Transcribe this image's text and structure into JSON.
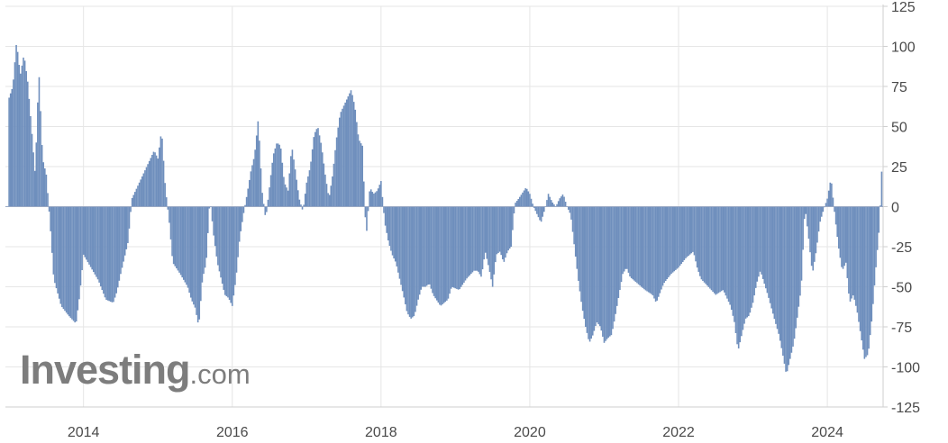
{
  "chart_data": {
    "type": "bar",
    "title": "",
    "xlabel": "",
    "ylabel": "",
    "ylim": [
      -125,
      125
    ],
    "xlim": [
      2012.95,
      2024.75
    ],
    "y_ticks": [
      125,
      100,
      75,
      50,
      25,
      0,
      -25,
      -50,
      -75,
      -100,
      -125
    ],
    "x_ticks": [
      "2014",
      "2016",
      "2018",
      "2020",
      "2022",
      "2024"
    ],
    "x_tick_values": [
      2014,
      2016,
      2018,
      2020,
      2022,
      2024
    ],
    "grid": true,
    "legend": "none",
    "bar_color": "#6f8fbd",
    "anchors": [
      [
        2013.0,
        68
      ],
      [
        2013.05,
        75
      ],
      [
        2013.1,
        103
      ],
      [
        2013.15,
        82
      ],
      [
        2013.2,
        95
      ],
      [
        2013.25,
        78
      ],
      [
        2013.3,
        50
      ],
      [
        2013.35,
        20
      ],
      [
        2013.4,
        85
      ],
      [
        2013.45,
        30
      ],
      [
        2013.5,
        20
      ],
      [
        2013.55,
        -10
      ],
      [
        2013.6,
        -45
      ],
      [
        2013.7,
        -62
      ],
      [
        2013.8,
        -68
      ],
      [
        2013.9,
        -73
      ],
      [
        2013.95,
        -55
      ],
      [
        2014.0,
        -30
      ],
      [
        2014.1,
        -38
      ],
      [
        2014.2,
        -46
      ],
      [
        2014.3,
        -58
      ],
      [
        2014.4,
        -60
      ],
      [
        2014.45,
        -53
      ],
      [
        2014.5,
        -42
      ],
      [
        2014.6,
        -22
      ],
      [
        2014.65,
        5
      ],
      [
        2014.75,
        15
      ],
      [
        2014.85,
        25
      ],
      [
        2014.95,
        35
      ],
      [
        2015.0,
        30
      ],
      [
        2015.05,
        48
      ],
      [
        2015.1,
        12
      ],
      [
        2015.15,
        -8
      ],
      [
        2015.2,
        -35
      ],
      [
        2015.3,
        -42
      ],
      [
        2015.4,
        -50
      ],
      [
        2015.45,
        -58
      ],
      [
        2015.5,
        -63
      ],
      [
        2015.55,
        -75
      ],
      [
        2015.6,
        -45
      ],
      [
        2015.65,
        -35
      ],
      [
        2015.7,
        5
      ],
      [
        2015.75,
        -18
      ],
      [
        2015.8,
        -35
      ],
      [
        2015.85,
        -45
      ],
      [
        2015.9,
        -55
      ],
      [
        2015.95,
        -57
      ],
      [
        2016.0,
        -62
      ],
      [
        2016.05,
        -45
      ],
      [
        2016.1,
        -20
      ],
      [
        2016.15,
        -5
      ],
      [
        2016.2,
        8
      ],
      [
        2016.25,
        22
      ],
      [
        2016.3,
        32
      ],
      [
        2016.35,
        55
      ],
      [
        2016.4,
        10
      ],
      [
        2016.45,
        -8
      ],
      [
        2016.5,
        12
      ],
      [
        2016.55,
        32
      ],
      [
        2016.6,
        40
      ],
      [
        2016.65,
        38
      ],
      [
        2016.7,
        15
      ],
      [
        2016.75,
        10
      ],
      [
        2016.8,
        38
      ],
      [
        2016.85,
        22
      ],
      [
        2016.9,
        5
      ],
      [
        2016.95,
        -3
      ],
      [
        2017.0,
        15
      ],
      [
        2017.05,
        25
      ],
      [
        2017.1,
        45
      ],
      [
        2017.15,
        50
      ],
      [
        2017.2,
        38
      ],
      [
        2017.25,
        20
      ],
      [
        2017.3,
        5
      ],
      [
        2017.35,
        20
      ],
      [
        2017.4,
        42
      ],
      [
        2017.45,
        58
      ],
      [
        2017.5,
        63
      ],
      [
        2017.55,
        68
      ],
      [
        2017.6,
        73
      ],
      [
        2017.65,
        62
      ],
      [
        2017.7,
        42
      ],
      [
        2017.75,
        38
      ],
      [
        2017.8,
        -20
      ],
      [
        2017.85,
        12
      ],
      [
        2017.9,
        8
      ],
      [
        2017.95,
        10
      ],
      [
        2018.0,
        16
      ],
      [
        2018.05,
        -10
      ],
      [
        2018.1,
        -22
      ],
      [
        2018.15,
        -30
      ],
      [
        2018.2,
        -35
      ],
      [
        2018.25,
        -45
      ],
      [
        2018.3,
        -55
      ],
      [
        2018.35,
        -66
      ],
      [
        2018.4,
        -70
      ],
      [
        2018.45,
        -68
      ],
      [
        2018.5,
        -58
      ],
      [
        2018.55,
        -50
      ],
      [
        2018.6,
        -50
      ],
      [
        2018.65,
        -48
      ],
      [
        2018.7,
        -55
      ],
      [
        2018.8,
        -62
      ],
      [
        2018.9,
        -58
      ],
      [
        2018.95,
        -50
      ],
      [
        2019.05,
        -52
      ],
      [
        2019.15,
        -45
      ],
      [
        2019.25,
        -40
      ],
      [
        2019.3,
        -40
      ],
      [
        2019.35,
        -44
      ],
      [
        2019.4,
        -28
      ],
      [
        2019.45,
        -38
      ],
      [
        2019.5,
        -50
      ],
      [
        2019.55,
        -30
      ],
      [
        2019.6,
        -28
      ],
      [
        2019.65,
        -35
      ],
      [
        2019.7,
        -28
      ],
      [
        2019.75,
        -25
      ],
      [
        2019.8,
        2
      ],
      [
        2019.85,
        5
      ],
      [
        2019.95,
        12
      ],
      [
        2020.0,
        8
      ],
      [
        2020.05,
        0
      ],
      [
        2020.1,
        -5
      ],
      [
        2020.15,
        -10
      ],
      [
        2020.2,
        -2
      ],
      [
        2020.25,
        8
      ],
      [
        2020.3,
        3
      ],
      [
        2020.35,
        0
      ],
      [
        2020.4,
        5
      ],
      [
        2020.45,
        8
      ],
      [
        2020.5,
        0
      ],
      [
        2020.55,
        -5
      ],
      [
        2020.6,
        -25
      ],
      [
        2020.65,
        -45
      ],
      [
        2020.7,
        -62
      ],
      [
        2020.75,
        -75
      ],
      [
        2020.8,
        -85
      ],
      [
        2020.85,
        -80
      ],
      [
        2020.9,
        -72
      ],
      [
        2020.95,
        -75
      ],
      [
        2021.0,
        -85
      ],
      [
        2021.05,
        -82
      ],
      [
        2021.1,
        -80
      ],
      [
        2021.15,
        -68
      ],
      [
        2021.2,
        -55
      ],
      [
        2021.25,
        -42
      ],
      [
        2021.3,
        -38
      ],
      [
        2021.35,
        -44
      ],
      [
        2021.45,
        -48
      ],
      [
        2021.55,
        -52
      ],
      [
        2021.65,
        -55
      ],
      [
        2021.7,
        -60
      ],
      [
        2021.8,
        -48
      ],
      [
        2021.9,
        -42
      ],
      [
        2022.0,
        -38
      ],
      [
        2022.1,
        -32
      ],
      [
        2022.2,
        -28
      ],
      [
        2022.25,
        -38
      ],
      [
        2022.3,
        -45
      ],
      [
        2022.4,
        -50
      ],
      [
        2022.5,
        -55
      ],
      [
        2022.6,
        -52
      ],
      [
        2022.7,
        -62
      ],
      [
        2022.75,
        -72
      ],
      [
        2022.8,
        -90
      ],
      [
        2022.85,
        -80
      ],
      [
        2022.9,
        -70
      ],
      [
        2022.95,
        -68
      ],
      [
        2023.0,
        -60
      ],
      [
        2023.05,
        -48
      ],
      [
        2023.1,
        -40
      ],
      [
        2023.2,
        -55
      ],
      [
        2023.3,
        -72
      ],
      [
        2023.35,
        -80
      ],
      [
        2023.4,
        -92
      ],
      [
        2023.45,
        -105
      ],
      [
        2023.5,
        -95
      ],
      [
        2023.55,
        -85
      ],
      [
        2023.6,
        -68
      ],
      [
        2023.65,
        -50
      ],
      [
        2023.7,
        0
      ],
      [
        2023.75,
        -20
      ],
      [
        2023.8,
        -42
      ],
      [
        2023.85,
        -28
      ],
      [
        2023.9,
        -10
      ],
      [
        2023.95,
        -2
      ],
      [
        2024.0,
        5
      ],
      [
        2024.05,
        18
      ],
      [
        2024.1,
        -5
      ],
      [
        2024.15,
        -25
      ],
      [
        2024.2,
        -40
      ],
      [
        2024.25,
        -35
      ],
      [
        2024.3,
        -60
      ],
      [
        2024.35,
        -55
      ],
      [
        2024.4,
        -65
      ],
      [
        2024.45,
        -80
      ],
      [
        2024.5,
        -95
      ],
      [
        2024.55,
        -92
      ],
      [
        2024.6,
        -70
      ],
      [
        2024.65,
        -40
      ],
      [
        2024.7,
        -12
      ],
      [
        2024.72,
        10
      ],
      [
        2024.74,
        32
      ]
    ]
  },
  "watermark": {
    "name": "Investing",
    "suffix": ".com"
  }
}
